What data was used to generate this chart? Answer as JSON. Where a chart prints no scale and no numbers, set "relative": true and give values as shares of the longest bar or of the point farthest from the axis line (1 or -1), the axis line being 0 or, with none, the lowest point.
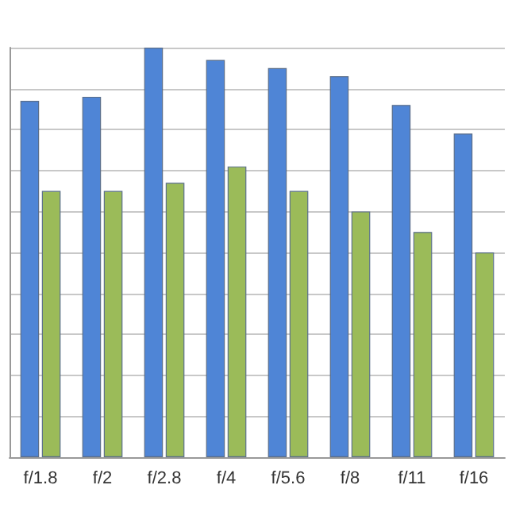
{
  "chart_data": {
    "type": "bar",
    "relative": true,
    "grid": "y",
    "categories": [
      "f/1.8",
      "f/2",
      "f/2.8",
      "f/4",
      "f/5.6",
      "f/8",
      "f/11",
      "f/16"
    ],
    "series": [
      {
        "color": "#4f85d6",
        "values": [
          0.87,
          0.88,
          1,
          0.97,
          0.95,
          0.93,
          0.86,
          0.79
        ]
      },
      {
        "color": "#9bbb59",
        "values": [
          0.65,
          0.65,
          0.67,
          0.71,
          0.65,
          0.6,
          0.55,
          0.5
        ]
      }
    ]
  }
}
